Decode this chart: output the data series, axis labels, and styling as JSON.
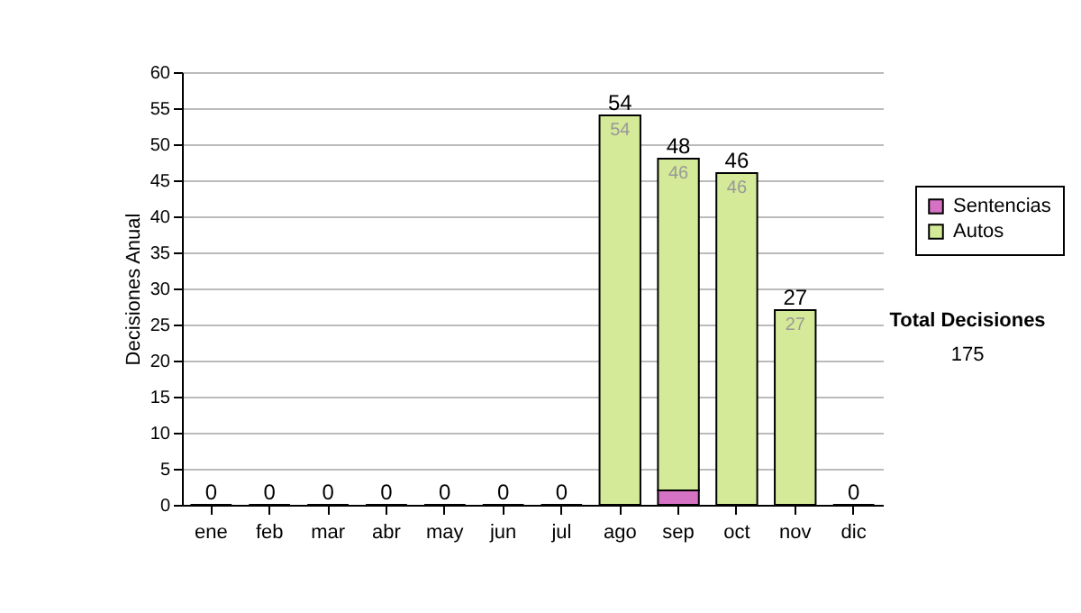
{
  "chart_data": {
    "type": "bar",
    "stacked": true,
    "ylabel": "Decisiones Anual",
    "categories": [
      "ene",
      "feb",
      "mar",
      "abr",
      "may",
      "jun",
      "jul",
      "ago",
      "sep",
      "oct",
      "nov",
      "dic"
    ],
    "series": [
      {
        "name": "Sentencias",
        "color": "#d672c4",
        "values": [
          0,
          0,
          0,
          0,
          0,
          0,
          0,
          0,
          2,
          0,
          0,
          0
        ]
      },
      {
        "name": "Autos",
        "color": "#d4ea98",
        "values": [
          0,
          0,
          0,
          0,
          0,
          0,
          0,
          54,
          46,
          46,
          27,
          0
        ],
        "value_labels": [
          null,
          null,
          null,
          null,
          null,
          null,
          null,
          "54",
          "46",
          "46",
          "27",
          null
        ]
      }
    ],
    "totals": [
      "0",
      "0",
      "0",
      "0",
      "0",
      "0",
      "0",
      "54",
      "48",
      "46",
      "27",
      "0"
    ],
    "ylim": [
      0,
      60
    ],
    "yticks": [
      0,
      5,
      10,
      15,
      20,
      25,
      30,
      35,
      40,
      45,
      50,
      55,
      60
    ],
    "grid": "y",
    "legend": "right",
    "annotations": [
      "Total Decisiones",
      "175"
    ]
  }
}
